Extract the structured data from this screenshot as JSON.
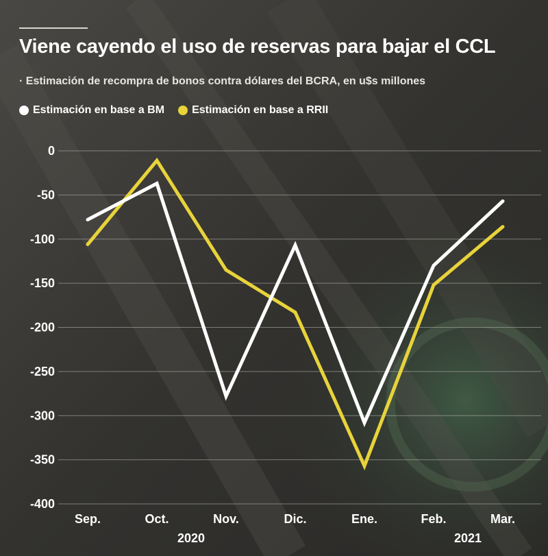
{
  "header": {
    "title": "Viene cayendo el uso de reservas para bajar el CCL",
    "subtitle": "· Estimación de recompra de bonos contra dólares del BCRA, en u$s millones"
  },
  "legend": {
    "items": [
      {
        "label": "Estimación en base a BM",
        "color": "#ffffff"
      },
      {
        "label": "Estimación en base a RRII",
        "color": "#e8d33a"
      }
    ]
  },
  "chart_data": {
    "type": "line",
    "categories": [
      "Sep.",
      "Oct.",
      "Nov.",
      "Dic.",
      "Ene.",
      "Feb.",
      "Mar."
    ],
    "year_labels": [
      {
        "label": "2020",
        "under": "Oct."
      },
      {
        "label": "2021",
        "under": "Feb."
      }
    ],
    "series": [
      {
        "name": "Estimación en base a BM",
        "color": "#ffffff",
        "values": [
          -78,
          -37,
          -278,
          -107,
          -308,
          -130,
          -57
        ]
      },
      {
        "name": "Estimación en base a RRII",
        "color": "#e8d33a",
        "values": [
          -106,
          -11,
          -135,
          -183,
          -357,
          -152,
          -86
        ]
      }
    ],
    "y_ticks": [
      0,
      -50,
      -100,
      -150,
      -200,
      -250,
      -300,
      -350,
      -400
    ],
    "ylim": [
      -400,
      0
    ],
    "grid": true,
    "legend_position": "top-left"
  }
}
